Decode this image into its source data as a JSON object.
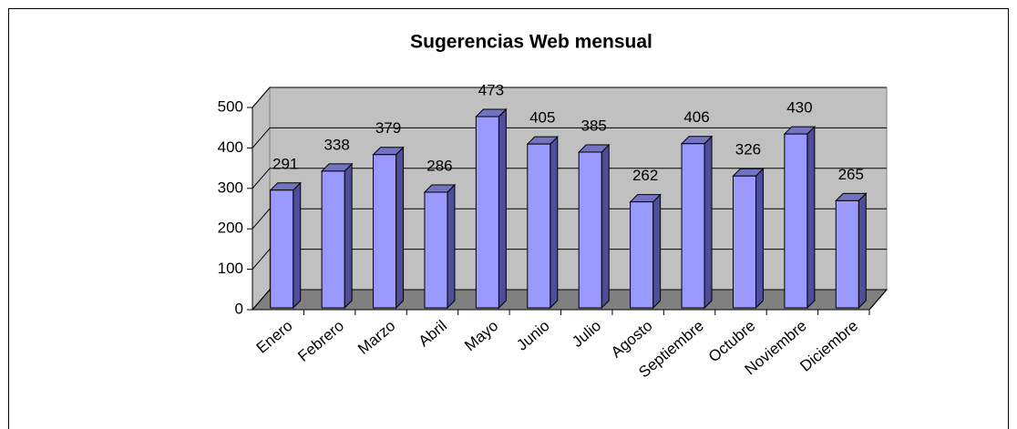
{
  "chart_data": {
    "type": "bar",
    "title": "Sugerencias Web mensual",
    "categories": [
      "Enero",
      "Febrero",
      "Marzo",
      "Abril",
      "Mayo",
      "Junio",
      "Julio",
      "Agosto",
      "Septiembre",
      "Octubre",
      "Noviembre",
      "Diciembre"
    ],
    "values": [
      291,
      338,
      379,
      286,
      473,
      405,
      385,
      262,
      406,
      326,
      430,
      265
    ],
    "color": "#9999ff",
    "ylim": [
      0,
      500
    ],
    "yticks": [
      0,
      100,
      200,
      300,
      400,
      500
    ],
    "grid": true
  }
}
